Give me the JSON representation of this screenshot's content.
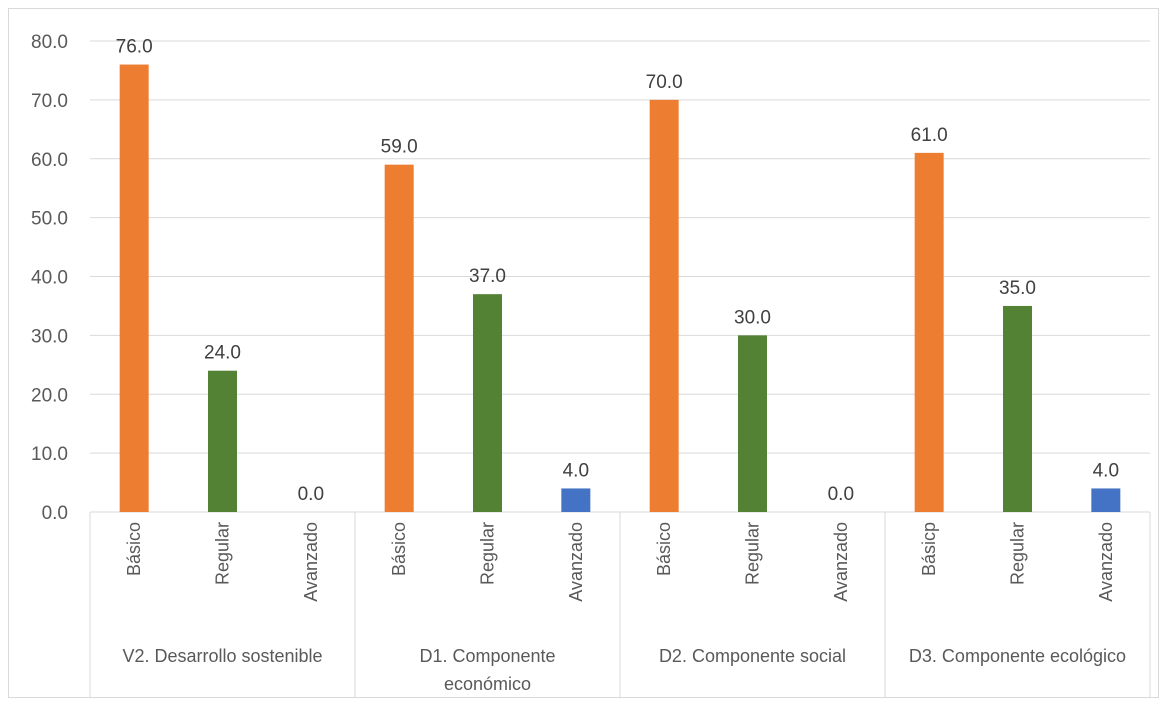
{
  "chart_data": {
    "type": "bar",
    "ylim": [
      0,
      80
    ],
    "yticks": [
      "0.0",
      "10.0",
      "20.0",
      "30.0",
      "40.0",
      "50.0",
      "60.0",
      "70.0",
      "80.0"
    ],
    "grid": true,
    "colors": {
      "Básico": "#ed7d31",
      "Regular": "#548235",
      "Avanzado": "#4472c4"
    },
    "groups": [
      {
        "label": [
          "V2. Desarrollo sostenible"
        ],
        "categories": [
          "Básico",
          "Regular",
          "Avanzado"
        ],
        "values": [
          76.0,
          24.0,
          0.0
        ],
        "value_labels": [
          "76.0",
          "24.0",
          "0.0"
        ]
      },
      {
        "label": [
          "D1. Componente",
          "económico"
        ],
        "categories": [
          "Básico",
          "Regular",
          "Avanzado"
        ],
        "values": [
          59.0,
          37.0,
          4.0
        ],
        "value_labels": [
          "59.0",
          "37.0",
          "4.0"
        ]
      },
      {
        "label": [
          "D2. Componente social"
        ],
        "categories": [
          "Básico",
          "Regular",
          "Avanzado"
        ],
        "values": [
          70.0,
          30.0,
          0.0
        ],
        "value_labels": [
          "70.0",
          "30.0",
          "0.0"
        ]
      },
      {
        "label": [
          "D3. Componente ecológico"
        ],
        "categories": [
          "Básicp",
          "Regular",
          "Avanzado"
        ],
        "values": [
          61.0,
          35.0,
          4.0
        ],
        "value_labels": [
          "61.0",
          "35.0",
          "4.0"
        ]
      }
    ]
  }
}
